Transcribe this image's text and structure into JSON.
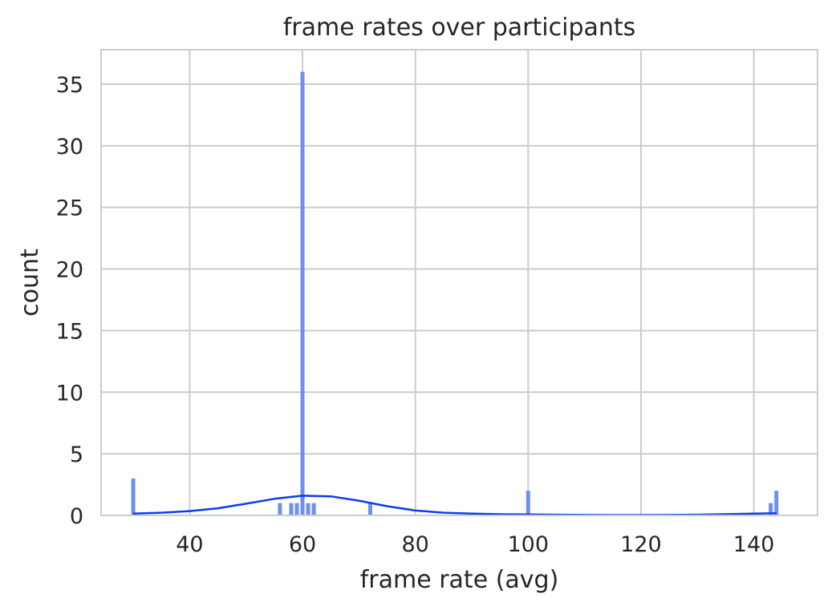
{
  "chart_data": {
    "type": "bar",
    "subtype": "histogram-with-kde",
    "title": "frame rates over participants",
    "xlabel": "frame rate (avg)",
    "ylabel": "count",
    "xlim": [
      24.3,
      151.3
    ],
    "ylim": [
      0,
      37.8
    ],
    "xticks": [
      40,
      60,
      80,
      100,
      120,
      140
    ],
    "yticks": [
      0,
      5,
      10,
      15,
      20,
      25,
      30,
      35
    ],
    "grid": true,
    "colors": {
      "bar": "#6f8ff0",
      "kde": "#0b3cf0",
      "grid": "#cccccc",
      "spine": "#cccccc"
    },
    "bins": [
      {
        "x": 30,
        "count": 3
      },
      {
        "x": 56,
        "count": 1
      },
      {
        "x": 58,
        "count": 1
      },
      {
        "x": 59,
        "count": 1
      },
      {
        "x": 60,
        "count": 36
      },
      {
        "x": 61,
        "count": 1
      },
      {
        "x": 62,
        "count": 1
      },
      {
        "x": 72,
        "count": 1
      },
      {
        "x": 100,
        "count": 2
      },
      {
        "x": 143,
        "count": 1
      },
      {
        "x": 144,
        "count": 2
      }
    ],
    "kde": {
      "x": [
        30,
        35,
        40,
        45,
        50,
        55,
        60,
        65,
        70,
        75,
        80,
        85,
        90,
        95,
        100,
        105,
        110,
        115,
        120,
        125,
        130,
        135,
        140,
        144
      ],
      "y": [
        0.15,
        0.22,
        0.35,
        0.58,
        0.95,
        1.35,
        1.6,
        1.55,
        1.2,
        0.75,
        0.4,
        0.22,
        0.14,
        0.1,
        0.08,
        0.06,
        0.04,
        0.03,
        0.03,
        0.04,
        0.06,
        0.1,
        0.14,
        0.18
      ]
    }
  }
}
